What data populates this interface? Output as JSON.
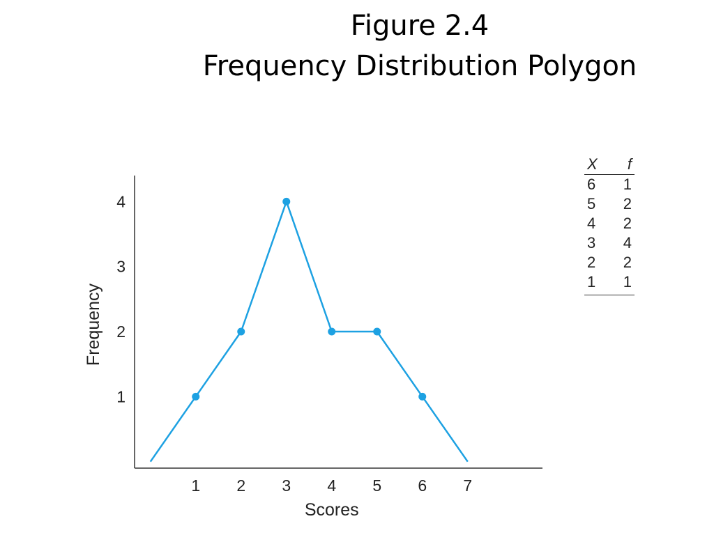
{
  "title": {
    "line1": "Figure 2.4",
    "line2": "Frequency Distribution Polygon"
  },
  "colors": {
    "series": "#1da1e2",
    "axis": "#333333",
    "text": "#222222"
  },
  "chart_data": {
    "type": "line",
    "title": "Figure 2.4 Frequency Distribution Polygon",
    "xlabel": "Scores",
    "ylabel": "Frequency",
    "xlim": [
      -0.35,
      8.65
    ],
    "ylim": [
      -0.1,
      4.4
    ],
    "x_ticks": [
      "1",
      "2",
      "3",
      "4",
      "5",
      "6",
      "7"
    ],
    "y_ticks": [
      "1",
      "2",
      "3",
      "4"
    ],
    "grid": false,
    "legend": "none",
    "series": [
      {
        "x": [
          0,
          1,
          2,
          3,
          4,
          5,
          6,
          7
        ],
        "y": [
          0,
          1,
          2,
          4,
          2,
          2,
          1,
          0
        ],
        "markers": [
          false,
          true,
          true,
          true,
          true,
          true,
          true,
          false
        ]
      }
    ]
  },
  "frequency_table": {
    "headers": [
      "X",
      "f"
    ],
    "rows": [
      [
        "6",
        "1"
      ],
      [
        "5",
        "2"
      ],
      [
        "4",
        "2"
      ],
      [
        "3",
        "4"
      ],
      [
        "2",
        "2"
      ],
      [
        "1",
        "1"
      ]
    ]
  }
}
